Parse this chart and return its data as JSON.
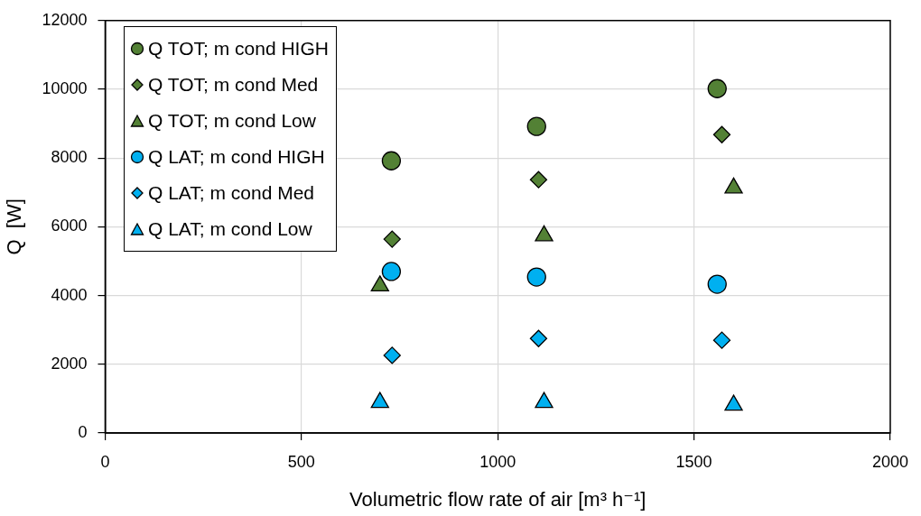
{
  "chart_data": {
    "type": "scatter",
    "xlabel": "Volumetric flow rate of air [m³ h⁻¹]",
    "ylabel": "Q  [W]",
    "xlim": [
      0,
      2000
    ],
    "xticks": [
      0,
      500,
      1000,
      1500,
      2000
    ],
    "ylim": [
      0,
      12000
    ],
    "yticks": [
      0,
      2000,
      4000,
      6000,
      8000,
      10000,
      12000
    ],
    "grid": true,
    "legend": "top left",
    "series": [
      {
        "name": "Q TOT; m cond HIGH",
        "color": "#538135",
        "marker": "circle",
        "x": [
          729,
          1099,
          1559
        ],
        "values": [
          7920,
          8920,
          10020
        ]
      },
      {
        "name": "Q TOT; m cond Med",
        "color": "#538135",
        "marker": "diamond",
        "x": [
          731,
          1104,
          1571
        ],
        "values": [
          5640,
          7370,
          8680
        ]
      },
      {
        "name": "Q TOT; m cond Low",
        "color": "#538135",
        "marker": "triangle",
        "x": [
          700,
          1118,
          1601
        ],
        "values": [
          4280,
          5740,
          7130
        ]
      },
      {
        "name": "Q LAT; m cond HIGH",
        "color": "#00b0f0",
        "marker": "circle",
        "x": [
          729,
          1099,
          1559
        ],
        "values": [
          4700,
          4540,
          4330
        ]
      },
      {
        "name": "Q LAT; m cond Med",
        "color": "#00b0f0",
        "marker": "diamond",
        "x": [
          731,
          1104,
          1571
        ],
        "values": [
          2260,
          2750,
          2700
        ]
      },
      {
        "name": "Q LAT; m cond Low",
        "color": "#00b0f0",
        "marker": "triangle",
        "x": [
          700,
          1118,
          1601
        ],
        "values": [
          890,
          890,
          810
        ]
      }
    ]
  }
}
